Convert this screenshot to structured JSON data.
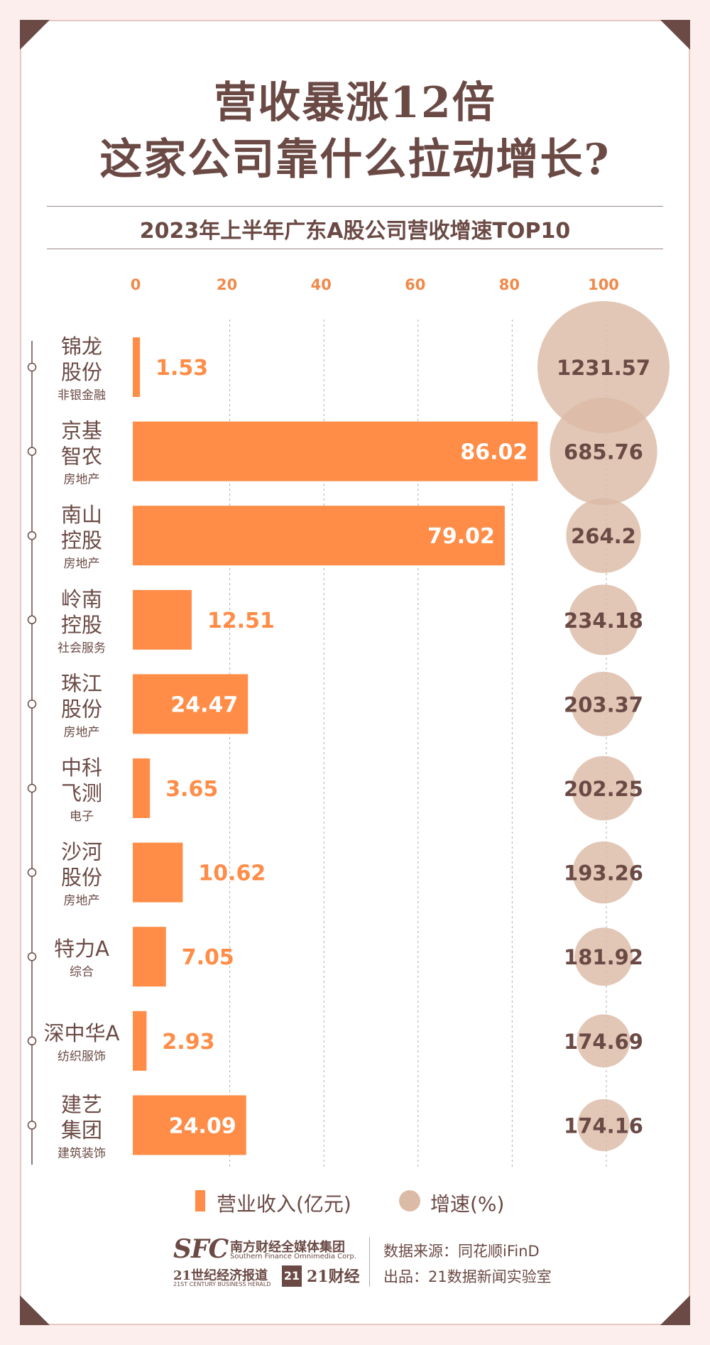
{
  "title": {
    "line1": "营收暴涨12倍",
    "line2": "这家公司靠什么拉动增长?"
  },
  "subtitle": "2023年上半年广东A股公司营收增速TOP10",
  "colors": {
    "bar": "#ff8c47",
    "circle": "#dcbba6",
    "text_dark": "#6b4a45",
    "axis_tick": "#f0894a"
  },
  "chart_data": {
    "type": "bar",
    "orientation": "horizontal",
    "x_ticks": [
      "0",
      "20",
      "40",
      "60",
      "80",
      "100"
    ],
    "xlim": [
      0,
      100
    ],
    "grid": "vertical-dashed",
    "categories": [
      {
        "name": [
          "锦龙",
          "股份"
        ],
        "industry": "非银金融"
      },
      {
        "name": [
          "京基",
          "智农"
        ],
        "industry": "房地产"
      },
      {
        "name": [
          "南山",
          "控股"
        ],
        "industry": "房地产"
      },
      {
        "name": [
          "岭南",
          "控股"
        ],
        "industry": "社会服务"
      },
      {
        "name": [
          "珠江",
          "股份"
        ],
        "industry": "房地产"
      },
      {
        "name": [
          "中科",
          "飞测"
        ],
        "industry": "电子"
      },
      {
        "name": [
          "沙河",
          "股份"
        ],
        "industry": "房地产"
      },
      {
        "name": [
          "特力A"
        ],
        "industry": "综合"
      },
      {
        "name": [
          "深中华A"
        ],
        "industry": "纺织服饰"
      },
      {
        "name": [
          "建艺",
          "集团"
        ],
        "industry": "建筑装饰"
      }
    ],
    "series": [
      {
        "name": "营业收入(亿元)",
        "mark": "bar",
        "values": [
          1.53,
          86.02,
          79.02,
          12.51,
          24.47,
          3.65,
          10.62,
          7.05,
          2.93,
          24.09
        ],
        "labels": [
          "1.53",
          "86.02",
          "79.02",
          "12.51",
          "24.47",
          "3.65",
          "10.62",
          "7.05",
          "2.93",
          "24.09"
        ]
      },
      {
        "name": "增速(%)",
        "mark": "bubble",
        "values": [
          1231.57,
          685.76,
          264.2,
          234.18,
          203.37,
          202.25,
          193.26,
          181.92,
          174.69,
          174.16
        ],
        "labels": [
          "1231.57",
          "685.76",
          "264.2",
          "234.18",
          "203.37",
          "202.25",
          "193.26",
          "181.92",
          "174.69",
          "174.16"
        ]
      }
    ],
    "legend": "bottom-center"
  },
  "legend": {
    "bar_label": "营业收入(亿元)",
    "circle_label": "增速(%)"
  },
  "footer": {
    "logo_sfc": "SFC",
    "logo_sfc_cn": "南方财经全媒体集团",
    "logo_sfc_en": "Southern Finance Omnimedia Corp.",
    "logo_21_cn": "21世纪经济报道",
    "logo_21_en": "21ST CENTURY BUSINESS HERALD",
    "logo_21_badge": "21",
    "logo_21cj": "21财经",
    "source": "数据来源：同花顺iFinD",
    "producer": "出品：21数据新闻实验室"
  }
}
